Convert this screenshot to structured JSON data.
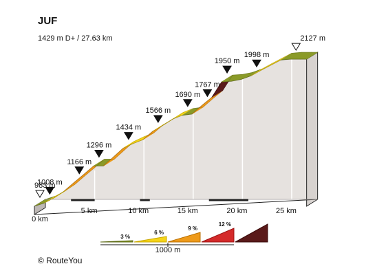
{
  "chart_data": {
    "type": "area",
    "title": "JUF",
    "subtitle": "1429 m D+ / 27.63 km",
    "credit": "RouteYou",
    "credit_symbol": "©",
    "xlabel": "",
    "ylabel": "",
    "x_unit": "km",
    "y_unit": "m",
    "x_ticks": [
      "0 km",
      "5 km",
      "10 km",
      "15 km",
      "20 km",
      "25 km"
    ],
    "total_distance_km": 27.63,
    "total_ascent_m": 1429,
    "x": [
      0,
      1,
      2,
      3,
      4,
      5,
      6,
      7,
      8,
      9,
      10,
      11,
      12,
      13,
      14,
      15,
      16,
      17,
      18,
      19,
      20,
      21,
      22,
      23,
      24,
      25,
      26,
      27,
      27.63
    ],
    "y": [
      983,
      1008,
      1048,
      1100,
      1166,
      1230,
      1296,
      1296,
      1365,
      1434,
      1470,
      1500,
      1566,
      1610,
      1660,
      1690,
      1700,
      1767,
      1830,
      1950,
      1955,
      1970,
      1998,
      2040,
      2080,
      2120,
      2127,
      2127,
      2127
    ],
    "segment_gradient_pct": [
      2.5,
      4,
      5.2,
      6.6,
      6.4,
      6.6,
      0,
      6.9,
      6.9,
      3.6,
      3,
      6.6,
      4.4,
      5,
      3,
      1,
      6.7,
      6.3,
      12,
      0.5,
      1.5,
      2.8,
      4.2,
      4,
      4,
      0.7,
      0,
      0
    ],
    "point_labels": [
      {
        "km": 0,
        "label": "983 m",
        "marker": "start"
      },
      {
        "km": 1,
        "label": "1008 m",
        "marker": "summit"
      },
      {
        "km": 4,
        "label": "1166 m",
        "marker": "summit"
      },
      {
        "km": 6,
        "label": "1296 m",
        "marker": "summit"
      },
      {
        "km": 9,
        "label": "1434 m",
        "marker": "summit"
      },
      {
        "km": 12,
        "label": "1566 m",
        "marker": "summit"
      },
      {
        "km": 15,
        "label": "1690 m",
        "marker": "summit"
      },
      {
        "km": 17,
        "label": "1767 m",
        "marker": "summit"
      },
      {
        "km": 19,
        "label": "1950 m",
        "marker": "summit"
      },
      {
        "km": 22,
        "label": "1998 m",
        "marker": "summit"
      },
      {
        "km": 26,
        "label": "2127 m",
        "marker": "end"
      }
    ],
    "legend": {
      "placement": "bottom-center",
      "items": [
        {
          "label": "3 %",
          "color": "#8a9a28",
          "dark": "#5d6b14"
        },
        {
          "label": "6 %",
          "color": "#f5d418",
          "dark": "#c9a800"
        },
        {
          "label": "9 %",
          "color": "#ee9a1a",
          "dark": "#b86f00"
        },
        {
          "label": "12 %",
          "color": "#d42a2a",
          "dark": "#9b1212"
        },
        {
          "label": "",
          "color": "#5a1a1a",
          "dark": "#3a0a0a"
        }
      ],
      "scale_label": "1000 m"
    },
    "colors": {
      "bands": [
        "#8a9a28",
        "#f5d418",
        "#ee9a1a",
        "#d42a2a",
        "#5a1a1a"
      ],
      "bands_dark": [
        "#5d6b14",
        "#c9a800",
        "#b86f00",
        "#9b1212",
        "#3a0a0a"
      ],
      "wall": "#e6e2df",
      "base_shade": "#cfcac7",
      "outline": "#222222"
    }
  }
}
